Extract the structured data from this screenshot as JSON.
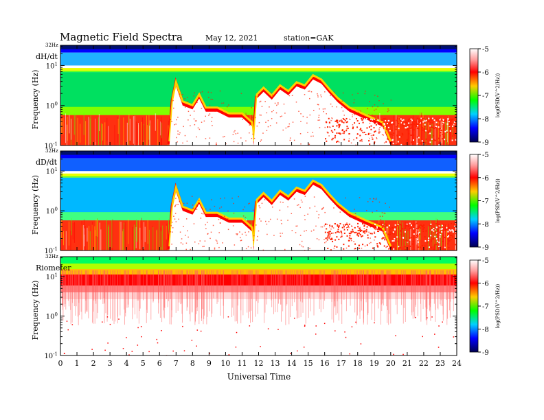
{
  "header": {
    "title": "Magnetic  Field  Spectra",
    "date": "May 12, 2021",
    "station": "station=GAK"
  },
  "chart_data": [
    {
      "type": "heatmap",
      "panel_label": "dH/dt",
      "ylabel": "Frequency  (Hz)",
      "top_label": "32Hz",
      "yticks": [
        {
          "base": "10",
          "exp": "1",
          "value": 10
        },
        {
          "base": "10",
          "exp": "0",
          "value": 1
        },
        {
          "base": "10",
          "exp": "-1",
          "value": 0.1
        }
      ],
      "yscale": "log",
      "ylim": [
        0.1,
        32
      ],
      "xlim": [
        0,
        24
      ],
      "colorbar": {
        "label": "log(PSD(V^2/Hz))",
        "ticks": [
          "-5",
          "-6",
          "-7",
          "-8",
          "-9"
        ],
        "range": [
          -9,
          -5
        ]
      },
      "features": {
        "band_30hz": "dark blue",
        "line_8hz": "yellow",
        "background_high": "green",
        "pc1_emission_hours": [
          6.7,
          11.7,
          16.5
        ],
        "low_freq_noise": "red"
      }
    },
    {
      "type": "heatmap",
      "panel_label": "dD/dt",
      "ylabel": "Frequency  (Hz)",
      "top_label": "32Hz",
      "yticks": [
        {
          "base": "10",
          "exp": "1",
          "value": 10
        },
        {
          "base": "10",
          "exp": "0",
          "value": 1
        },
        {
          "base": "10",
          "exp": "-1",
          "value": 0.1
        }
      ],
      "yscale": "log",
      "ylim": [
        0.1,
        32
      ],
      "xlim": [
        0,
        24
      ],
      "colorbar": {
        "label": "log(PSD(V^2/Hz))",
        "ticks": [
          "-5",
          "-6",
          "-7",
          "-8",
          "-9"
        ],
        "range": [
          -9,
          -5
        ]
      },
      "features": {
        "band_30hz": "dark blue",
        "line_8hz": "yellow",
        "background_high": "cyan-blue",
        "pc1_emission_hours": [
          6.7,
          11.7,
          16.5
        ],
        "low_freq_noise": "red"
      }
    },
    {
      "type": "heatmap",
      "panel_label": "Riometer",
      "ylabel": "Frequency  (Hz)",
      "top_label": "32Hz",
      "yticks": [
        {
          "base": "10",
          "exp": "1",
          "value": 10
        },
        {
          "base": "10",
          "exp": "0",
          "value": 1
        },
        {
          "base": "10",
          "exp": "-1",
          "value": 0.1
        }
      ],
      "yscale": "log",
      "ylim": [
        0.1,
        32
      ],
      "xlim": [
        0,
        24
      ],
      "colorbar": {
        "label": "log(PSD(V^2/Hz))",
        "ticks": [
          "-5",
          "-6",
          "-7",
          "-8",
          "-9"
        ],
        "range": [
          -9,
          -5
        ]
      },
      "features": {
        "upper_band": "green-yellow-red",
        "below_3hz": "white"
      }
    }
  ],
  "xaxis": {
    "label": "Universal Time",
    "ticks": [
      "0",
      "1",
      "2",
      "3",
      "4",
      "5",
      "6",
      "7",
      "8",
      "9",
      "10",
      "11",
      "12",
      "13",
      "14",
      "15",
      "16",
      "17",
      "18",
      "19",
      "20",
      "21",
      "22",
      "23",
      "24"
    ]
  },
  "colors": {
    "colormap": [
      "#000066",
      "#0000ff",
      "#00c8ff",
      "#00ff00",
      "#ffff00",
      "#ff0000",
      "#ffffff"
    ]
  }
}
